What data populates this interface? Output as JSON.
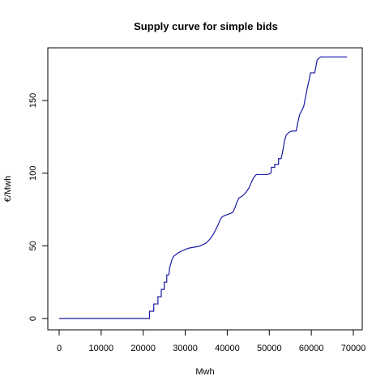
{
  "chart_data": {
    "type": "line",
    "title": "Supply curve for simple bids",
    "xlabel": "Mwh",
    "ylabel": "€/Mwh",
    "xlim": [
      0,
      70000
    ],
    "ylim": [
      0,
      180
    ],
    "x_ticks": [
      0,
      10000,
      20000,
      30000,
      40000,
      50000,
      60000,
      70000
    ],
    "y_ticks": [
      0,
      50,
      100,
      150
    ],
    "x_tick_labels": [
      "0",
      "10000",
      "20000",
      "30000",
      "40000",
      "50000",
      "60000",
      "70000"
    ],
    "y_tick_labels": [
      "0",
      "50",
      "100",
      "150"
    ],
    "grid": false,
    "line_color": "#1a1aa6",
    "series": [
      {
        "points": [
          [
            0,
            0
          ],
          [
            21500,
            0
          ],
          [
            21500,
            5
          ],
          [
            22500,
            5
          ],
          [
            22500,
            10
          ],
          [
            23500,
            10
          ],
          [
            23500,
            15
          ],
          [
            24300,
            15
          ],
          [
            24300,
            20
          ],
          [
            25000,
            20
          ],
          [
            25000,
            25
          ],
          [
            25600,
            25
          ],
          [
            25600,
            30
          ],
          [
            26100,
            30
          ],
          [
            26300,
            35
          ],
          [
            26600,
            38
          ],
          [
            26900,
            41
          ],
          [
            27300,
            43
          ],
          [
            27800,
            44
          ],
          [
            28500,
            45.5
          ],
          [
            29200,
            46.5
          ],
          [
            30000,
            47.5
          ],
          [
            31000,
            48.5
          ],
          [
            32000,
            49
          ],
          [
            33000,
            49.5
          ],
          [
            34000,
            50.5
          ],
          [
            35000,
            52
          ],
          [
            36000,
            55
          ],
          [
            36700,
            58
          ],
          [
            37400,
            62
          ],
          [
            37900,
            65
          ],
          [
            38300,
            68
          ],
          [
            38800,
            70
          ],
          [
            39500,
            71
          ],
          [
            40500,
            72
          ],
          [
            41300,
            73
          ],
          [
            41800,
            76
          ],
          [
            42300,
            80
          ],
          [
            42800,
            83
          ],
          [
            43500,
            84
          ],
          [
            44500,
            87
          ],
          [
            45200,
            90
          ],
          [
            45800,
            94
          ],
          [
            46300,
            97
          ],
          [
            46900,
            99
          ],
          [
            48000,
            99
          ],
          [
            49500,
            99
          ],
          [
            50400,
            100
          ],
          [
            50500,
            104
          ],
          [
            51300,
            104
          ],
          [
            51300,
            106
          ],
          [
            52200,
            106
          ],
          [
            52200,
            110
          ],
          [
            52800,
            110
          ],
          [
            53200,
            115
          ],
          [
            53600,
            122
          ],
          [
            54000,
            126
          ],
          [
            54600,
            128
          ],
          [
            55400,
            129
          ],
          [
            56400,
            129
          ],
          [
            56800,
            135
          ],
          [
            57200,
            140
          ],
          [
            57700,
            143
          ],
          [
            58200,
            146
          ],
          [
            58600,
            152
          ],
          [
            59000,
            158
          ],
          [
            59400,
            163
          ],
          [
            59800,
            169
          ],
          [
            60800,
            169
          ],
          [
            61400,
            178
          ],
          [
            62200,
            180
          ],
          [
            68500,
            180
          ]
        ]
      }
    ]
  }
}
